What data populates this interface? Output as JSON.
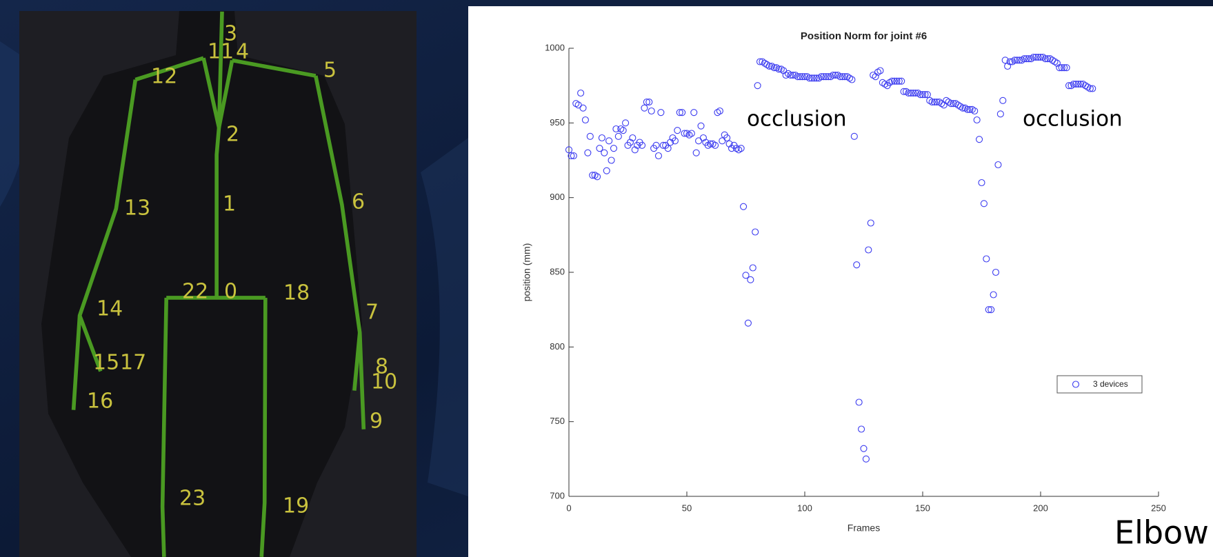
{
  "skeleton": {
    "labels": [
      "3",
      "11",
      "4",
      "12",
      "5",
      "2",
      "1",
      "13",
      "6",
      "22",
      "0",
      "18",
      "14",
      "7",
      "15",
      "17",
      "8",
      "10",
      "16",
      "9",
      "23",
      "19"
    ]
  },
  "chart_data": {
    "type": "scatter",
    "title": "Position Norm for joint #6",
    "x_label": "Frames",
    "y_label": "position (mm)",
    "xlim": [
      0,
      250
    ],
    "ylim": [
      700,
      1000
    ],
    "xticks": [
      0,
      50,
      100,
      150,
      200,
      250
    ],
    "yticks": [
      700,
      750,
      800,
      850,
      900,
      950,
      1000
    ],
    "annotations": [
      "occlusion",
      "occlusion",
      "Elbow"
    ],
    "series": [
      {
        "name": "3 devices",
        "color": "#3c3cf0",
        "x": [
          0,
          1,
          2,
          3,
          4,
          5,
          6,
          7,
          8,
          9,
          10,
          11,
          12,
          13,
          14,
          15,
          16,
          17,
          18,
          19,
          20,
          21,
          22,
          23,
          24,
          25,
          26,
          27,
          28,
          29,
          30,
          31,
          32,
          33,
          34,
          35,
          36,
          37,
          38,
          39,
          40,
          41,
          42,
          43,
          44,
          45,
          46,
          47,
          48,
          49,
          50,
          51,
          52,
          53,
          54,
          55,
          56,
          57,
          58,
          59,
          60,
          61,
          62,
          63,
          64,
          65,
          66,
          67,
          68,
          69,
          70,
          71,
          72,
          73,
          74,
          75,
          76,
          77,
          78,
          79,
          80,
          81,
          82,
          83,
          84,
          85,
          86,
          87,
          88,
          89,
          90,
          91,
          92,
          93,
          94,
          95,
          96,
          97,
          98,
          99,
          100,
          101,
          102,
          103,
          104,
          105,
          106,
          107,
          108,
          109,
          110,
          111,
          112,
          113,
          114,
          115,
          116,
          117,
          118,
          119,
          120,
          121,
          122,
          123,
          124,
          125,
          126,
          127,
          128,
          129,
          130,
          131,
          132,
          133,
          134,
          135,
          136,
          137,
          138,
          139,
          140,
          141,
          142,
          143,
          144,
          145,
          146,
          147,
          148,
          149,
          150,
          151,
          152,
          153,
          154,
          155,
          156,
          157,
          158,
          159,
          160,
          161,
          162,
          163,
          164,
          165,
          166,
          167,
          168,
          169,
          170,
          171,
          172,
          173,
          174,
          175,
          176,
          177,
          178,
          179,
          180,
          181,
          182,
          183,
          184,
          185,
          186,
          187,
          188,
          189,
          190,
          191,
          192,
          193,
          194,
          195,
          196,
          197,
          198,
          199,
          200,
          201,
          202,
          203,
          204,
          205,
          206,
          207,
          208,
          209,
          210,
          211,
          212,
          213,
          214,
          215,
          216,
          217,
          218,
          219,
          220,
          221,
          222
        ],
        "values": [
          932,
          928,
          928,
          963,
          962,
          970,
          960,
          952,
          930,
          941,
          915,
          915,
          914,
          933,
          940,
          930,
          918,
          938,
          925,
          933,
          946,
          941,
          946,
          945,
          950,
          935,
          937,
          940,
          932,
          935,
          937,
          935,
          960,
          964,
          964,
          958,
          933,
          935,
          928,
          957,
          935,
          935,
          933,
          937,
          940,
          938,
          945,
          957,
          957,
          943,
          943,
          942,
          943,
          957,
          930,
          938,
          948,
          940,
          937,
          935,
          936,
          936,
          935,
          957,
          958,
          938,
          942,
          940,
          936,
          933,
          935,
          933,
          932,
          933,
          894,
          848,
          816,
          845,
          853,
          877,
          975,
          991,
          991,
          990,
          989,
          988,
          988,
          987,
          987,
          986,
          986,
          985,
          982,
          983,
          982,
          982,
          982,
          981,
          981,
          981,
          981,
          981,
          980,
          980,
          980,
          980,
          980,
          981,
          981,
          981,
          981,
          981,
          982,
          982,
          982,
          981,
          981,
          981,
          981,
          980,
          979,
          941,
          855,
          763,
          745,
          732,
          725,
          865,
          883,
          982,
          981,
          984,
          985,
          977,
          976,
          975,
          977,
          978,
          978,
          978,
          978,
          978,
          971,
          971,
          970,
          970,
          970,
          970,
          970,
          969,
          969,
          969,
          969,
          965,
          964,
          964,
          964,
          964,
          963,
          962,
          965,
          964,
          963,
          963,
          963,
          962,
          961,
          960,
          960,
          959,
          959,
          959,
          958,
          952,
          939,
          910,
          896,
          859,
          825,
          825,
          835,
          850,
          922,
          956,
          965,
          992,
          988,
          991,
          991,
          992,
          992,
          992,
          992,
          993,
          993,
          993,
          993,
          994,
          994,
          994,
          994,
          994,
          993,
          993,
          993,
          992,
          991,
          990,
          987,
          987,
          987,
          987,
          975,
          975,
          976,
          976,
          976,
          976,
          976,
          975,
          974,
          973,
          973
        ]
      }
    ]
  }
}
